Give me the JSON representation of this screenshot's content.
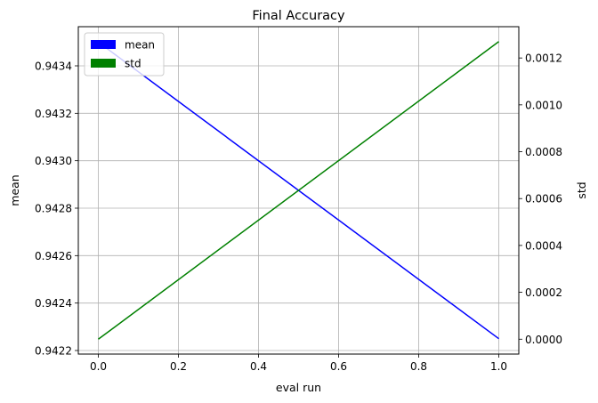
{
  "chart_data": {
    "type": "line",
    "title": "Final Accuracy",
    "xlabel": "eval run",
    "ylabel_left": "mean",
    "ylabel_right": "std",
    "x": [
      0.0,
      1.0
    ],
    "xlim": [
      -0.05,
      1.05
    ],
    "xticks": [
      0.0,
      0.2,
      0.4,
      0.6,
      0.8,
      1.0
    ],
    "xtick_labels": [
      "0.0",
      "0.2",
      "0.4",
      "0.6",
      "0.8",
      "1.0"
    ],
    "left_axis": {
      "ylim": [
        0.942185,
        0.943565
      ],
      "ticks": [
        0.9422,
        0.9424,
        0.9426,
        0.9428,
        0.943,
        0.9432,
        0.9434
      ],
      "tick_labels": [
        "0.9422",
        "0.9424",
        "0.9426",
        "0.9428",
        "0.9430",
        "0.9432",
        "0.9434"
      ]
    },
    "right_axis": {
      "ylim": [
        -6.35e-05,
        0.0013335
      ],
      "ticks": [
        0.0,
        0.0002,
        0.0004,
        0.0006,
        0.0008,
        0.001,
        0.0012
      ],
      "tick_labels": [
        "0.0000",
        "0.0002",
        "0.0004",
        "0.0006",
        "0.0008",
        "0.0010",
        "0.0012"
      ]
    },
    "series": [
      {
        "name": "mean",
        "axis": "left",
        "color": "#0000ff",
        "values": [
          0.9435,
          0.94225
        ]
      },
      {
        "name": "std",
        "axis": "right",
        "color": "#008000",
        "values": [
          0.0,
          0.00127
        ]
      }
    ],
    "grid": true,
    "legend_position": "upper-left"
  }
}
